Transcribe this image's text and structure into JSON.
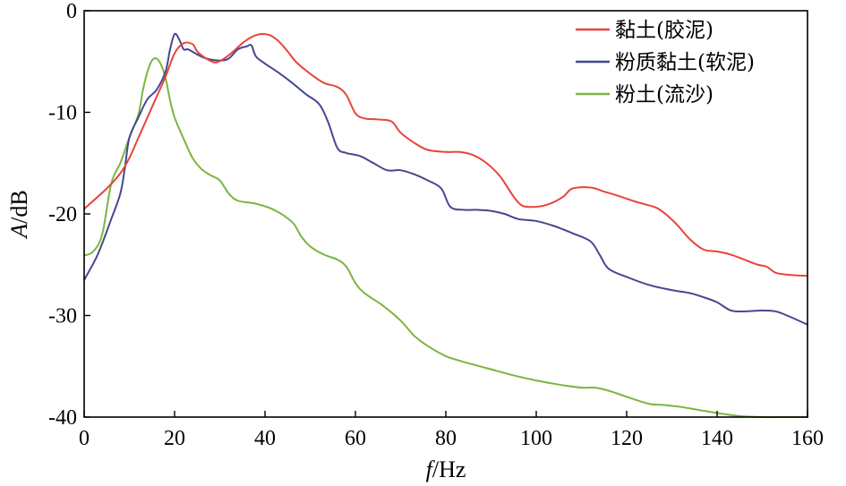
{
  "chart_data": {
    "type": "line",
    "xlabel_italic": "f",
    "xlabel_unit": "/Hz",
    "ylabel_italic": "A",
    "ylabel_unit": "/dB",
    "xlim": [
      0,
      160
    ],
    "ylim": [
      -40,
      0
    ],
    "xticks": [
      0,
      20,
      40,
      60,
      80,
      100,
      120,
      140,
      160
    ],
    "yticks": [
      0,
      -10,
      -20,
      -30,
      -40
    ],
    "xtick_labels": [
      "0",
      "20",
      "40",
      "60",
      "80",
      "100",
      "120",
      "140",
      "160"
    ],
    "ytick_labels": [
      "0",
      "-10",
      "-20",
      "-30",
      "-40"
    ],
    "grid": false,
    "legend_position": "top-right",
    "series": [
      {
        "name": "黏土(胶泥)",
        "color": "#e8443a",
        "x": [
          0,
          5,
          8,
          10,
          12,
          14,
          16,
          18,
          20,
          22,
          24,
          25,
          27,
          29,
          31,
          33,
          35,
          37,
          39,
          41,
          43,
          45,
          47,
          50,
          53,
          56,
          58,
          60,
          62,
          65,
          68,
          70,
          73,
          76,
          80,
          83,
          86,
          89,
          92,
          95,
          97,
          100,
          103,
          106,
          108,
          112,
          115,
          118,
          122,
          126,
          128,
          131,
          134,
          137,
          140,
          143,
          146,
          149,
          151,
          153,
          156,
          160
        ],
        "y": [
          -19.5,
          -17.5,
          -16,
          -14.5,
          -12.5,
          -10.5,
          -8.5,
          -6.5,
          -4.2,
          -3.2,
          -3.3,
          -4.0,
          -4.7,
          -5.1,
          -4.7,
          -4.0,
          -3.2,
          -2.6,
          -2.3,
          -2.4,
          -3.0,
          -4.0,
          -5.1,
          -6.2,
          -7.1,
          -7.5,
          -8.3,
          -10.1,
          -10.6,
          -10.7,
          -10.9,
          -12.0,
          -13.0,
          -13.7,
          -13.9,
          -13.9,
          -14.2,
          -15.0,
          -16.3,
          -18.3,
          -19.2,
          -19.3,
          -19.0,
          -18.3,
          -17.5,
          -17.4,
          -17.8,
          -18.2,
          -18.8,
          -19.3,
          -19.8,
          -21.0,
          -22.5,
          -23.5,
          -23.7,
          -24.0,
          -24.5,
          -25.0,
          -25.2,
          -25.8,
          -26.0,
          -26.1
        ]
      },
      {
        "name": "粉质黏土(软泥)",
        "color": "#454791",
        "x": [
          0,
          3,
          6,
          8,
          9,
          10,
          12,
          14,
          16,
          18,
          19,
          20,
          21,
          22,
          23,
          25,
          27,
          30,
          32,
          34,
          36,
          37,
          38,
          40,
          43,
          46,
          49,
          52,
          54,
          56,
          58,
          61,
          64,
          67,
          70,
          73,
          76,
          79,
          81,
          84,
          87,
          90,
          93,
          96,
          100,
          104,
          108,
          112,
          114,
          116,
          120,
          125,
          130,
          134,
          137,
          140,
          143,
          146,
          150,
          153,
          156,
          160
        ],
        "y": [
          -26.5,
          -24,
          -20.5,
          -18,
          -15.5,
          -12.5,
          -10.5,
          -8.7,
          -7.8,
          -6.0,
          -3.8,
          -2.3,
          -2.8,
          -3.8,
          -3.8,
          -4.3,
          -4.7,
          -4.9,
          -4.7,
          -3.8,
          -3.5,
          -3.4,
          -4.5,
          -5.2,
          -6.1,
          -7.1,
          -8.2,
          -9.2,
          -11.0,
          -13.5,
          -14.0,
          -14.3,
          -15.0,
          -15.7,
          -15.7,
          -16.1,
          -16.7,
          -17.5,
          -19.3,
          -19.6,
          -19.6,
          -19.7,
          -20.0,
          -20.5,
          -20.7,
          -21.2,
          -21.9,
          -22.7,
          -24.0,
          -25.4,
          -26.2,
          -27.0,
          -27.5,
          -27.8,
          -28.2,
          -28.7,
          -29.5,
          -29.6,
          -29.5,
          -29.6,
          -30.1,
          -30.9
        ]
      },
      {
        "name": "粉土(流沙)",
        "color": "#7bb540",
        "x": [
          0,
          2,
          4,
          6,
          8,
          10,
          12,
          13,
          14,
          15,
          16,
          17,
          18,
          19,
          20,
          22,
          24,
          26,
          28,
          30,
          32,
          34,
          38,
          42,
          46,
          48,
          50,
          53,
          56,
          58,
          60,
          62,
          66,
          70,
          73,
          76,
          80,
          85,
          90,
          95,
          100,
          105,
          110,
          113,
          116,
          120,
          125,
          128,
          132,
          136,
          140,
          145,
          150,
          155,
          160
        ],
        "y": [
          -24.1,
          -23.7,
          -22.0,
          -17.0,
          -15.0,
          -12.5,
          -10.2,
          -7.8,
          -6.0,
          -4.9,
          -4.7,
          -5.3,
          -6.6,
          -8.8,
          -10.5,
          -12.6,
          -14.5,
          -15.6,
          -16.2,
          -16.7,
          -18.0,
          -18.7,
          -19.0,
          -19.6,
          -20.8,
          -22.2,
          -23.2,
          -24.0,
          -24.5,
          -25.2,
          -26.8,
          -27.8,
          -29.0,
          -30.5,
          -32.0,
          -33.0,
          -34.0,
          -34.7,
          -35.3,
          -35.9,
          -36.4,
          -36.8,
          -37.1,
          -37.1,
          -37.4,
          -38.0,
          -38.7,
          -38.8,
          -39.0,
          -39.3,
          -39.6,
          -39.9,
          -40.0,
          -40.0,
          -40.0
        ]
      }
    ]
  }
}
